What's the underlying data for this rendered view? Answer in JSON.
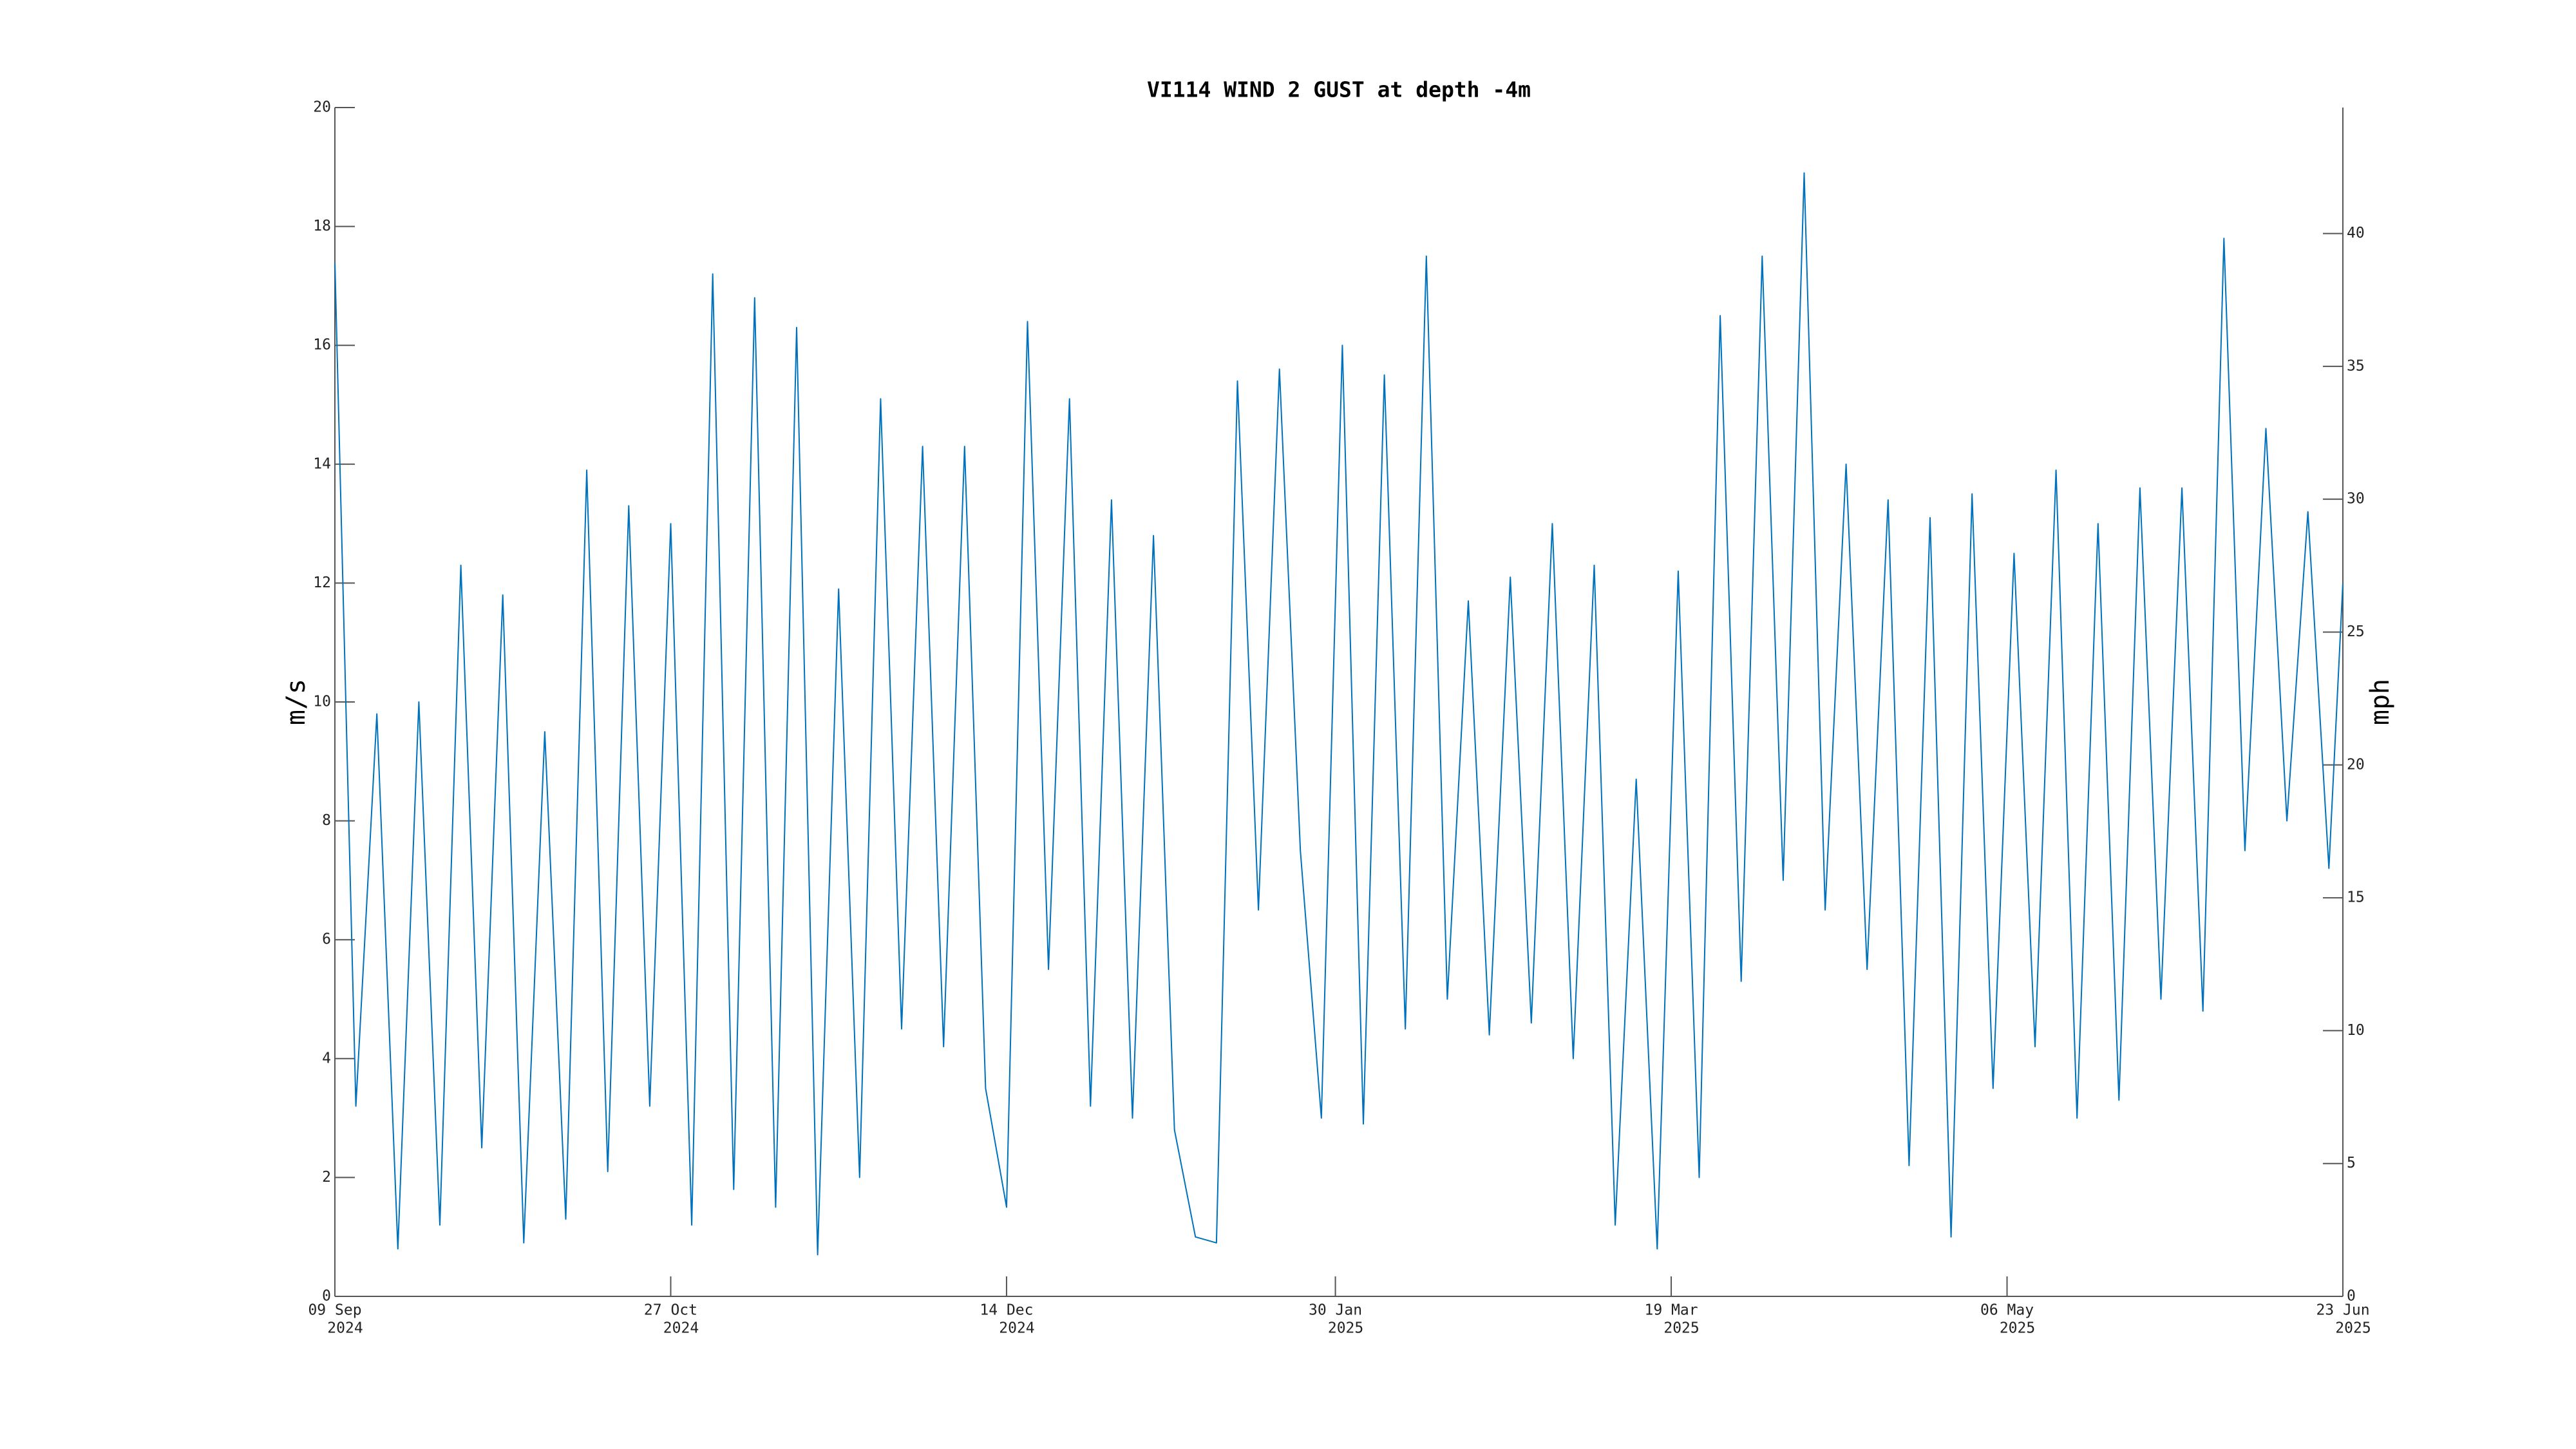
{
  "chart_data": {
    "type": "line",
    "title": "VI114 WIND 2 GUST at depth -4m",
    "ylabel": "m/s",
    "y2label": "mph",
    "x": [
      "2024-09-09",
      "2024-09-12",
      "2024-09-15",
      "2024-09-18",
      "2024-09-21",
      "2024-09-24",
      "2024-09-27",
      "2024-09-30",
      "2024-10-03",
      "2024-10-06",
      "2024-10-09",
      "2024-10-12",
      "2024-10-15",
      "2024-10-18",
      "2024-10-21",
      "2024-10-24",
      "2024-10-27",
      "2024-10-30",
      "2024-11-02",
      "2024-11-05",
      "2024-11-08",
      "2024-11-11",
      "2024-11-14",
      "2024-11-17",
      "2024-11-20",
      "2024-11-23",
      "2024-11-26",
      "2024-11-29",
      "2024-12-02",
      "2024-12-05",
      "2024-12-08",
      "2024-12-11",
      "2024-12-14",
      "2024-12-17",
      "2024-12-20",
      "2024-12-23",
      "2024-12-26",
      "2024-12-29",
      "2025-01-01",
      "2025-01-04",
      "2025-01-07",
      "2025-01-10",
      "2025-01-13",
      "2025-01-16",
      "2025-01-19",
      "2025-01-22",
      "2025-01-25",
      "2025-01-28",
      "2025-01-31",
      "2025-02-03",
      "2025-02-06",
      "2025-02-09",
      "2025-02-12",
      "2025-02-15",
      "2025-02-18",
      "2025-02-21",
      "2025-02-24",
      "2025-02-27",
      "2025-03-02",
      "2025-03-05",
      "2025-03-08",
      "2025-03-11",
      "2025-03-14",
      "2025-03-17",
      "2025-03-20",
      "2025-03-23",
      "2025-03-26",
      "2025-03-29",
      "2025-04-01",
      "2025-04-04",
      "2025-04-07",
      "2025-04-10",
      "2025-04-13",
      "2025-04-16",
      "2025-04-19",
      "2025-04-22",
      "2025-04-25",
      "2025-04-28",
      "2025-05-01",
      "2025-05-04",
      "2025-05-07",
      "2025-05-10",
      "2025-05-13",
      "2025-05-16",
      "2025-05-19",
      "2025-05-22",
      "2025-05-25",
      "2025-05-28",
      "2025-05-31",
      "2025-06-03",
      "2025-06-06",
      "2025-06-09",
      "2025-06-12",
      "2025-06-15",
      "2025-06-18",
      "2025-06-21",
      "2025-06-23"
    ],
    "series": [
      {
        "name": "WIND 2 GUST",
        "color": "#0072bd",
        "values": [
          17.4,
          3.2,
          9.8,
          0.8,
          10.0,
          1.2,
          12.3,
          2.5,
          11.8,
          0.9,
          9.5,
          1.3,
          13.9,
          2.1,
          13.3,
          3.2,
          13.0,
          1.2,
          17.2,
          1.8,
          16.8,
          1.5,
          16.3,
          0.7,
          11.9,
          2.0,
          15.1,
          4.5,
          14.3,
          4.2,
          14.3,
          3.5,
          1.5,
          16.4,
          5.5,
          15.1,
          3.2,
          13.4,
          3.0,
          12.8,
          2.8,
          1.0,
          0.9,
          15.4,
          6.5,
          15.6,
          7.5,
          3.0,
          16.0,
          2.9,
          15.5,
          4.5,
          17.5,
          5.0,
          11.7,
          4.4,
          12.1,
          4.6,
          13.0,
          4.0,
          12.3,
          1.2,
          8.7,
          0.8,
          12.2,
          2.0,
          16.5,
          5.3,
          17.5,
          7.0,
          18.9,
          6.5,
          14.0,
          5.5,
          13.4,
          2.2,
          13.1,
          1.0,
          13.5,
          3.5,
          12.5,
          4.2,
          13.9,
          3.0,
          13.0,
          3.3,
          13.6,
          5.0,
          13.6,
          4.8,
          17.8,
          7.5,
          14.6,
          8.0,
          13.2,
          7.2,
          12.0
        ]
      }
    ],
    "xlim": [
      "2024-09-09",
      "2025-06-23"
    ],
    "xticks": [
      {
        "value": "2024-09-09",
        "label": [
          "09 Sep",
          "2024"
        ]
      },
      {
        "value": "2024-10-27",
        "label": [
          "27 Oct",
          "2024"
        ]
      },
      {
        "value": "2024-12-14",
        "label": [
          "14 Dec",
          "2024"
        ]
      },
      {
        "value": "2025-01-30",
        "label": [
          "30 Jan",
          "2025"
        ]
      },
      {
        "value": "2025-03-19",
        "label": [
          "19 Mar",
          "2025"
        ]
      },
      {
        "value": "2025-05-06",
        "label": [
          "06 May",
          "2025"
        ]
      },
      {
        "value": "2025-06-23",
        "label": [
          "23 Jun",
          "2025"
        ]
      }
    ],
    "ylim": [
      0,
      20
    ],
    "yticks": [
      0,
      2,
      4,
      6,
      8,
      10,
      12,
      14,
      16,
      18,
      20
    ],
    "y2lim": [
      0,
      44.74
    ],
    "y2ticks": [
      0,
      5,
      10,
      15,
      20,
      25,
      30,
      35,
      40
    ],
    "grid": false
  }
}
